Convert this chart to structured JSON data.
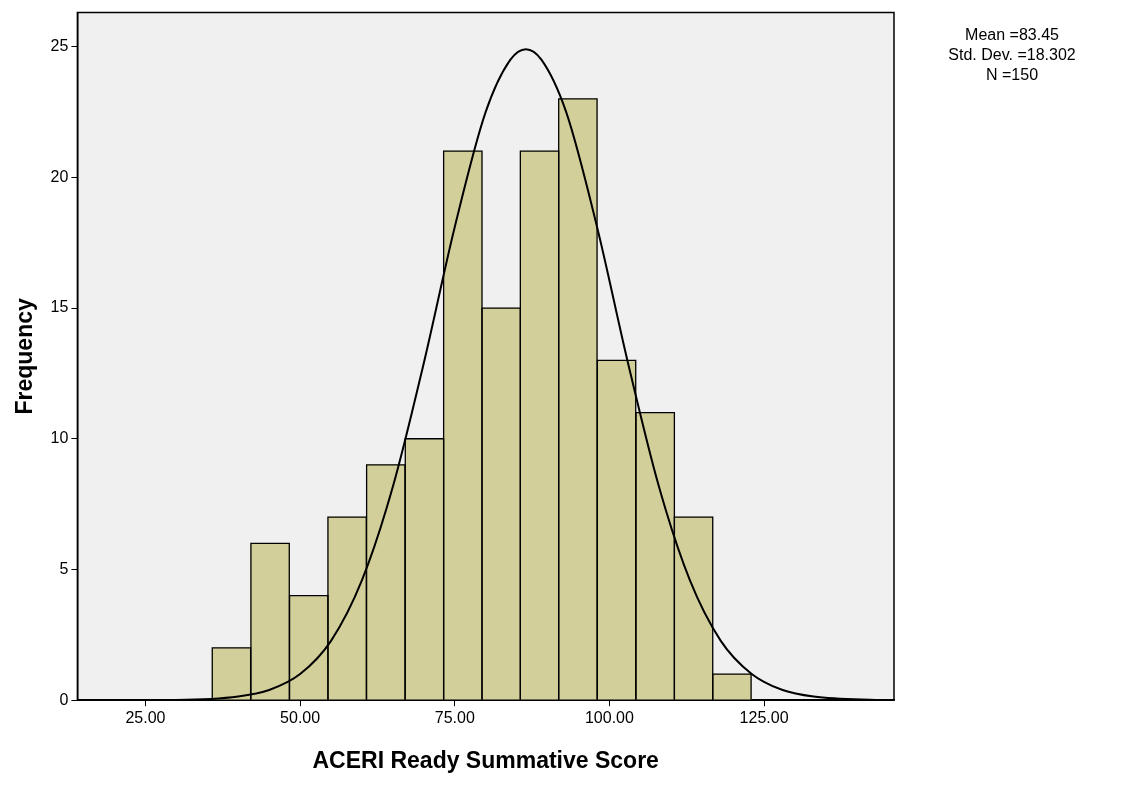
{
  "chart_data": {
    "type": "histogram",
    "xlabel": "ACERI Ready Summative Score",
    "ylabel": "Frequency",
    "bins": [
      35.8,
      42.0,
      48.3,
      54.5,
      60.7,
      67.0,
      73.2,
      79.4,
      85.6,
      91.8,
      98.0,
      104.3,
      110.5,
      116.7,
      122.9
    ],
    "values": [
      2,
      6,
      4,
      7,
      9,
      10,
      21,
      15,
      21,
      23,
      13,
      11,
      7,
      1
    ],
    "color": "#d3cf9a",
    "series": [
      {
        "type": "line",
        "color": "#000000",
        "x": [
          14,
          30,
          40,
          45,
          50,
          55,
          60,
          65,
          70,
          75,
          80,
          84,
          86.5,
          89,
          93,
          98,
          103,
          108,
          113,
          118,
          123,
          128,
          133,
          143,
          146
        ],
        "values": [
          0,
          0.01,
          0.14,
          0.39,
          1.0,
          2.27,
          4.59,
          8.17,
          12.9,
          18.1,
          22.5,
          24.5,
          24.9,
          24.5,
          22.5,
          18.1,
          12.9,
          8.17,
          4.59,
          2.27,
          1.0,
          0.39,
          0.14,
          0.01,
          0
        ]
      }
    ],
    "xlim": [
      14,
      146
    ],
    "xticks": [
      {
        "value": 25,
        "label": "25.00"
      },
      {
        "value": 50,
        "label": "50.00"
      },
      {
        "value": 75,
        "label": "75.00"
      },
      {
        "value": 100,
        "label": "100.00"
      },
      {
        "value": 125,
        "label": "125.00"
      }
    ],
    "ylim": [
      0,
      26.3
    ],
    "yticks": [
      0,
      5,
      10,
      15,
      20,
      25
    ],
    "grid": false,
    "legend": false,
    "marker": "none",
    "annotations": [
      "Mean =83.45",
      "Std. Dev. =18.302",
      "N =150"
    ]
  }
}
